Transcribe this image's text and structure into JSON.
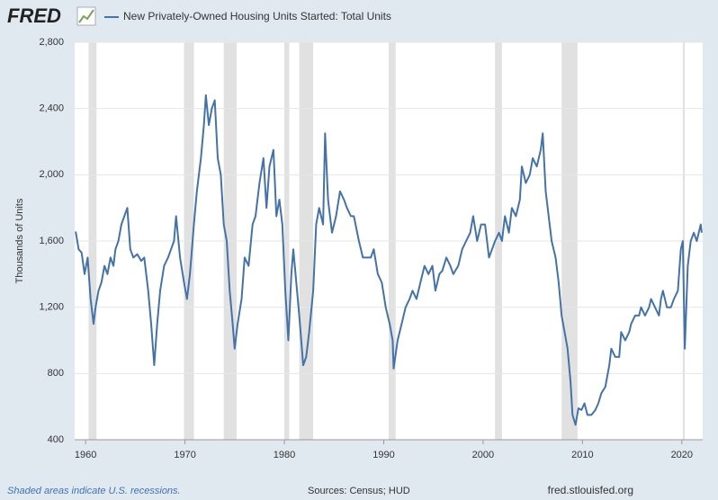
{
  "chart_data": {
    "type": "line",
    "logo": "FRED",
    "y_label": "Thousands of Units",
    "footnote": "Shaded areas indicate U.S. recessions.",
    "source": "Sources: Census; HUD",
    "site": "fred.stlouisfed.org",
    "grid": true,
    "xlim": [
      1958.9,
      2022.1
    ],
    "ylim": [
      400,
      2800
    ],
    "xticks": [
      1960,
      1970,
      1980,
      1990,
      2000,
      2010,
      2020
    ],
    "yticks": [
      400,
      800,
      {
        "value": 1200,
        "label": "1,200"
      },
      {
        "value": 1600,
        "label": "1,600"
      },
      {
        "value": 2000,
        "label": "2,000"
      },
      {
        "value": 2400,
        "label": "2,400"
      },
      {
        "value": 2800,
        "label": "2,800"
      }
    ],
    "recessions": [
      [
        1960.3,
        1961.1
      ],
      [
        1969.9,
        1970.9
      ],
      [
        1973.9,
        1975.2
      ],
      [
        1980.0,
        1980.5
      ],
      [
        1981.5,
        1982.9
      ],
      [
        1990.5,
        1991.2
      ],
      [
        2001.2,
        2001.9
      ],
      [
        2007.9,
        2009.5
      ],
      [
        2020.1,
        2020.3
      ]
    ],
    "recession_color": "#e1e1e1",
    "x": [
      1959.0,
      1959.3,
      1959.6,
      1959.9,
      1960.2,
      1960.5,
      1960.8,
      1961.0,
      1961.3,
      1961.6,
      1961.9,
      1962.2,
      1962.5,
      1962.8,
      1963.0,
      1963.3,
      1963.6,
      1963.9,
      1964.2,
      1964.5,
      1964.8,
      1965.2,
      1965.6,
      1965.9,
      1966.3,
      1966.6,
      1966.9,
      1967.2,
      1967.5,
      1967.9,
      1968.3,
      1968.6,
      1968.9,
      1969.1,
      1969.5,
      1969.9,
      1970.2,
      1970.5,
      1970.9,
      1971.2,
      1971.6,
      1971.9,
      1972.1,
      1972.4,
      1972.7,
      1973.0,
      1973.3,
      1973.6,
      1973.9,
      1974.2,
      1974.5,
      1974.8,
      1975.0,
      1975.3,
      1975.7,
      1976.0,
      1976.4,
      1976.8,
      1977.1,
      1977.5,
      1977.9,
      1978.2,
      1978.5,
      1978.9,
      1979.2,
      1979.5,
      1979.8,
      1980.1,
      1980.4,
      1980.7,
      1980.9,
      1981.2,
      1981.5,
      1981.9,
      1982.2,
      1982.5,
      1982.9,
      1983.2,
      1983.5,
      1983.9,
      1984.1,
      1984.4,
      1984.8,
      1985.2,
      1985.6,
      1986.0,
      1986.3,
      1986.7,
      1987.0,
      1987.5,
      1987.9,
      1988.3,
      1988.7,
      1989.0,
      1989.4,
      1989.8,
      1990.2,
      1990.6,
      1990.9,
      1991.0,
      1991.4,
      1991.8,
      1992.2,
      1992.6,
      1992.9,
      1993.3,
      1993.7,
      1994.1,
      1994.5,
      1994.9,
      1995.2,
      1995.6,
      1995.9,
      1996.3,
      1996.7,
      1997.0,
      1997.5,
      1997.9,
      1998.3,
      1998.7,
      1999.0,
      1999.4,
      1999.8,
      2000.2,
      2000.6,
      2000.9,
      2001.2,
      2001.6,
      2001.9,
      2002.2,
      2002.6,
      2002.9,
      2003.3,
      2003.7,
      2003.9,
      2004.3,
      2004.7,
      2005.0,
      2005.4,
      2005.8,
      2006.0,
      2006.3,
      2006.6,
      2006.9,
      2007.3,
      2007.6,
      2007.9,
      2008.2,
      2008.5,
      2008.8,
      2009.0,
      2009.3,
      2009.6,
      2009.9,
      2010.2,
      2010.5,
      2010.9,
      2011.3,
      2011.6,
      2011.9,
      2012.3,
      2012.7,
      2012.9,
      2013.3,
      2013.7,
      2013.9,
      2014.3,
      2014.7,
      2014.9,
      2015.3,
      2015.7,
      2015.9,
      2016.3,
      2016.7,
      2016.9,
      2017.3,
      2017.7,
      2017.9,
      2018.1,
      2018.5,
      2018.9,
      2019.2,
      2019.6,
      2019.9,
      2020.1,
      2020.3,
      2020.6,
      2020.9,
      2021.2,
      2021.5,
      2021.9,
      2022.0
    ],
    "series": [
      {
        "name": "New Privately-Owned Housing Units Started: Total Units",
        "color": "#4572a7",
        "values": [
          1657,
          1550,
          1530,
          1400,
          1500,
          1250,
          1100,
          1200,
          1300,
          1350,
          1450,
          1400,
          1500,
          1450,
          1550,
          1600,
          1700,
          1750,
          1800,
          1550,
          1500,
          1520,
          1480,
          1500,
          1300,
          1100,
          850,
          1100,
          1300,
          1450,
          1500,
          1550,
          1600,
          1750,
          1500,
          1350,
          1250,
          1400,
          1700,
          1900,
          2100,
          2300,
          2480,
          2300,
          2400,
          2450,
          2100,
          2000,
          1700,
          1600,
          1300,
          1100,
          950,
          1100,
          1250,
          1500,
          1450,
          1700,
          1750,
          1950,
          2100,
          1800,
          2050,
          2150,
          1750,
          1850,
          1700,
          1300,
          1000,
          1400,
          1550,
          1350,
          1150,
          850,
          900,
          1050,
          1300,
          1700,
          1800,
          1700,
          2250,
          1850,
          1650,
          1750,
          1900,
          1850,
          1800,
          1750,
          1750,
          1600,
          1500,
          1500,
          1500,
          1550,
          1400,
          1350,
          1200,
          1100,
          1000,
          830,
          1000,
          1100,
          1200,
          1250,
          1300,
          1250,
          1350,
          1450,
          1400,
          1450,
          1300,
          1400,
          1420,
          1500,
          1450,
          1400,
          1450,
          1550,
          1600,
          1650,
          1750,
          1600,
          1700,
          1700,
          1500,
          1550,
          1600,
          1650,
          1600,
          1750,
          1650,
          1800,
          1750,
          1850,
          2050,
          1950,
          2000,
          2100,
          2050,
          2150,
          2250,
          1900,
          1750,
          1600,
          1500,
          1350,
          1150,
          1050,
          950,
          750,
          550,
          490,
          590,
          580,
          620,
          550,
          550,
          580,
          620,
          680,
          720,
          850,
          950,
          900,
          900,
          1050,
          1000,
          1050,
          1100,
          1150,
          1150,
          1200,
          1150,
          1200,
          1250,
          1200,
          1150,
          1250,
          1300,
          1200,
          1200,
          1250,
          1300,
          1550,
          1600,
          950,
          1450,
          1600,
          1650,
          1600,
          1700,
          1650
        ]
      }
    ]
  }
}
